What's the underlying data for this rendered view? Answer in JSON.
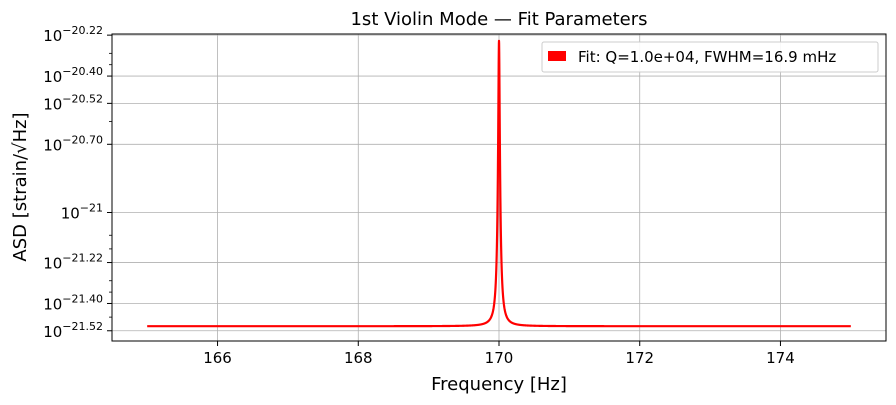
{
  "chart_data": {
    "type": "line",
    "title": "1st Violin Mode — Fit Parameters",
    "xlabel": "Frequency [Hz]",
    "ylabel": "ASD [strain/√Hz]",
    "xlim": [
      164.5,
      175.5
    ],
    "ylim_log10": [
      -21.565,
      -20.215
    ],
    "y_scale": "log",
    "grid": true,
    "legend_position": "top-right",
    "x_ticks": [
      {
        "value": 166,
        "label": "166"
      },
      {
        "value": 168,
        "label": "168"
      },
      {
        "value": 170,
        "label": "170"
      },
      {
        "value": 172,
        "label": "172"
      },
      {
        "value": 174,
        "label": "174"
      }
    ],
    "y_ticks": [
      {
        "log10": -20.22,
        "exp": "−20.22"
      },
      {
        "log10": -20.4,
        "exp": "−20.40"
      },
      {
        "log10": -20.52,
        "exp": "−20.52"
      },
      {
        "log10": -20.7,
        "exp": "−20.70"
      },
      {
        "log10": -21.0,
        "exp": "−21"
      },
      {
        "log10": -21.22,
        "exp": "−21.22"
      },
      {
        "log10": -21.4,
        "exp": "−21.40"
      },
      {
        "log10": -21.52,
        "exp": "−21.52"
      }
    ],
    "y_tick_base": "10",
    "y_minor_ticks_log10": [
      -20.3,
      -20.35,
      -20.6,
      -21.1,
      -21.16,
      -21.3,
      -21.35,
      -21.46
    ],
    "series": [
      {
        "name": "Fit: Q=1.0e+04, FWHM=16.9 mHz",
        "color": "#ff0000",
        "model": "lorentzian",
        "f0": 170.0,
        "fwhm": 0.0169,
        "baseline_log10": -21.5,
        "peak_log10": -20.245,
        "x_range": [
          165.0,
          175.0
        ]
      }
    ],
    "colors": {
      "line": "#ff0000",
      "grid": "#b0b0b0",
      "axes": "#000000"
    }
  }
}
